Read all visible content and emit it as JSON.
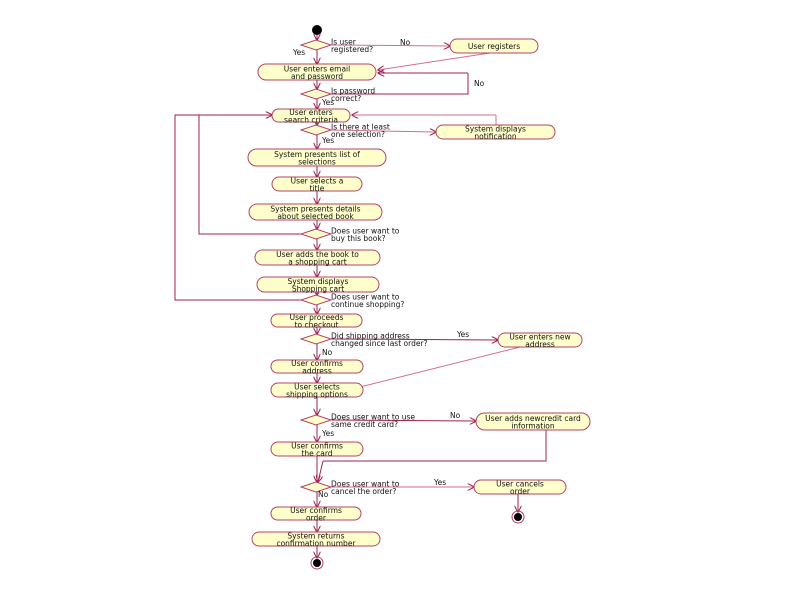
{
  "colors": {
    "activity_fill": "#ffffcc",
    "border": "#b5406a",
    "edge": "#a0204f"
  },
  "activities": {
    "user_registers": [
      "User registers"
    ],
    "enter_email": [
      "User enters email",
      "and password"
    ],
    "enter_search": [
      "User enters",
      "search criteria"
    ],
    "notification": [
      "System displays",
      "notification"
    ],
    "list_selections": [
      "System presents list of",
      "selections"
    ],
    "select_title": [
      "User selects a",
      "title"
    ],
    "present_details": [
      "System presents details",
      "about selected book"
    ],
    "add_to_cart": [
      "User adds the book to",
      "a shopping cart"
    ],
    "display_cart": [
      "System displays",
      "Shopping cart"
    ],
    "checkout": [
      "User proceeds",
      "to checkout"
    ],
    "new_address": [
      "User enters new",
      "address"
    ],
    "confirm_address": [
      "User confirms",
      "address"
    ],
    "shipping_options": [
      "User selects",
      "shipping options"
    ],
    "new_card": [
      "User adds newcredit card",
      "information"
    ],
    "confirm_card": [
      "User confirms",
      "the card"
    ],
    "cancel_order": [
      "User cancels",
      "order"
    ],
    "confirm_order": [
      "User confirms",
      "order"
    ],
    "confirmation_number": [
      "System returns",
      "confirmation number"
    ]
  },
  "decisions": {
    "registered": [
      "Is user",
      "registered?"
    ],
    "password": [
      "Is password",
      "correct?"
    ],
    "selection": [
      "Is there at least",
      "one selection?"
    ],
    "buy": [
      "Does user want to",
      "buy this book?"
    ],
    "continue": [
      "Does user want to",
      "continue shopping?"
    ],
    "address_changed": [
      "Did shipping address",
      "changed since last order?"
    ],
    "same_card": [
      "Does user want to use",
      "same credit card?"
    ],
    "cancel": [
      "Does user want to",
      "cancel the order?"
    ]
  },
  "guards": {
    "registered_no": "No",
    "registered_yes": "Yes",
    "password_no": "No",
    "password_yes": "Yes",
    "selection_yes": "Yes",
    "address_yes": "Yes",
    "address_no": "No",
    "card_no": "No",
    "card_yes": "Yes",
    "cancel_yes": "Yes",
    "cancel_no": "No"
  }
}
